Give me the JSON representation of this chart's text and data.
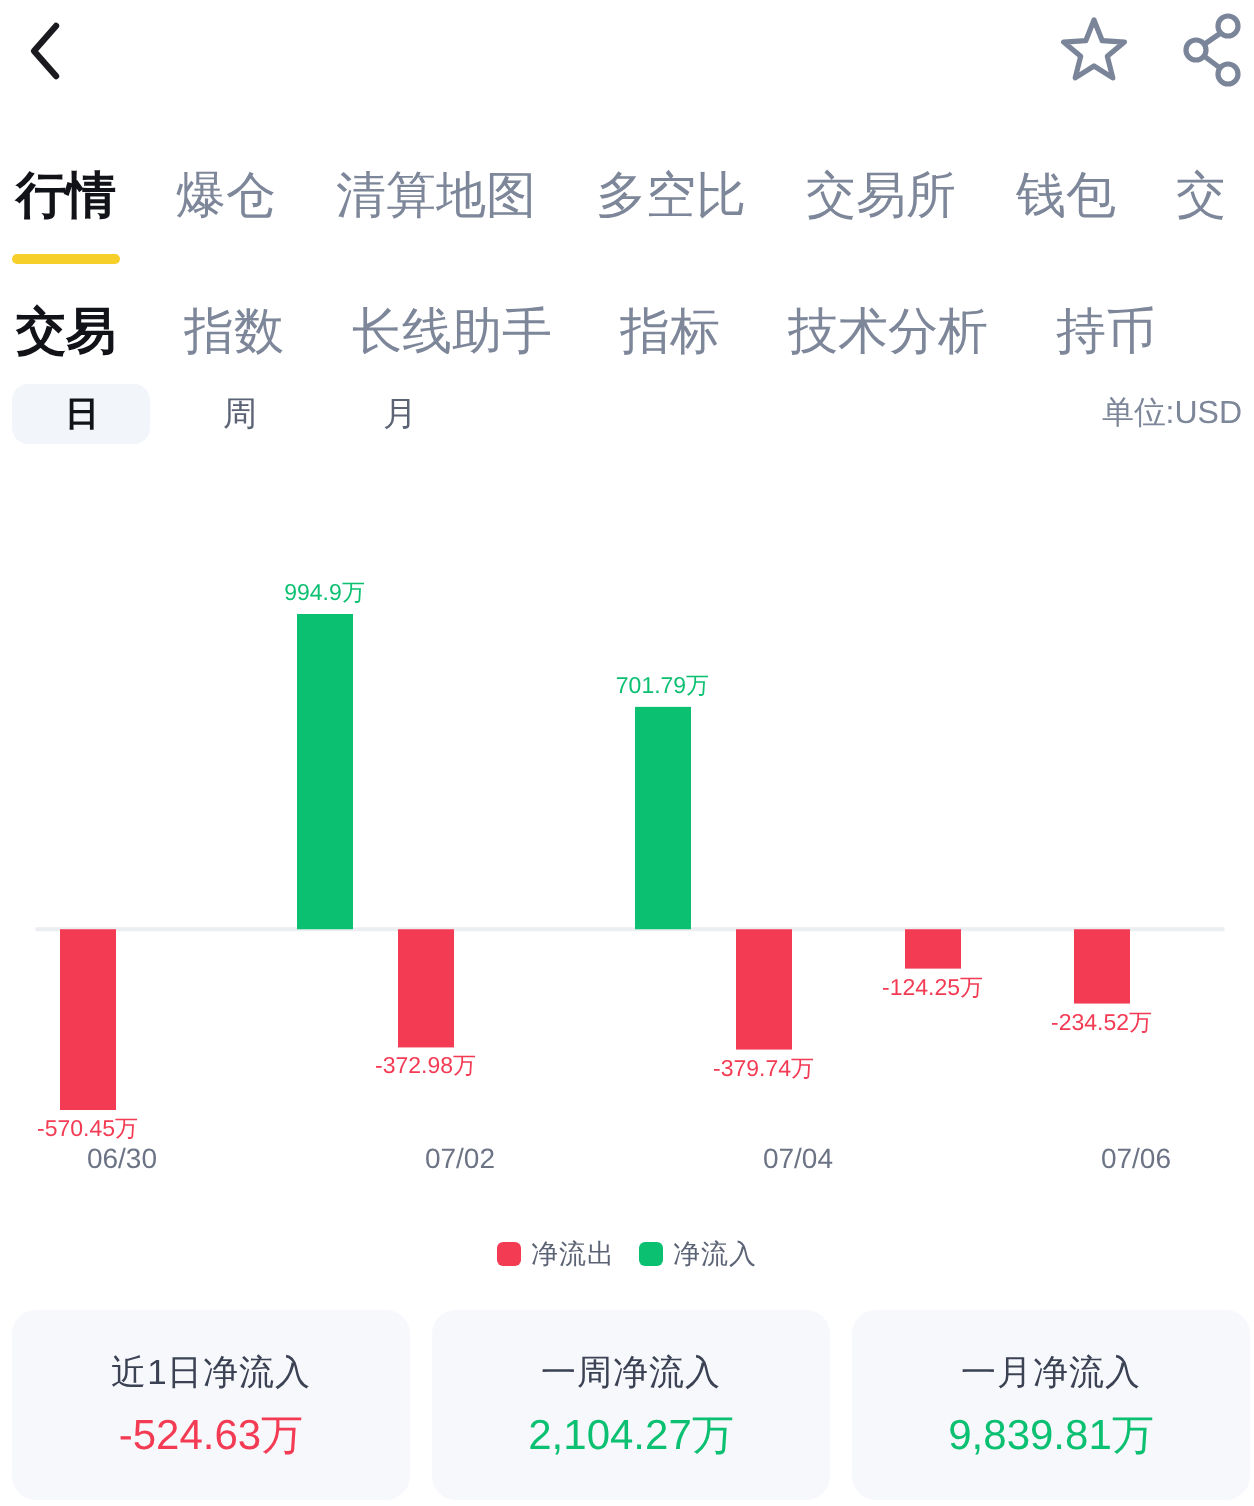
{
  "chart_data": {
    "type": "bar",
    "categories": [
      "06/30",
      null,
      "07/02",
      null,
      "07/04",
      null,
      "07/06"
    ],
    "series": [
      {
        "name": "净流出",
        "color": "#f33b54",
        "values": [
          -570.45,
          null,
          -372.98,
          null,
          -379.74,
          -124.25,
          -234.52
        ],
        "value_labels": [
          "-570.45万",
          null,
          "-372.98万",
          null,
          "-379.74万",
          "-124.25万",
          "-234.52万"
        ]
      },
      {
        "name": "净流入",
        "color": "#0cc072",
        "values": [
          null,
          994.9,
          null,
          701.79,
          null,
          null,
          null
        ],
        "value_labels": [
          null,
          "994.9万",
          null,
          "701.79万",
          null,
          null,
          null
        ]
      }
    ],
    "legend": "bottom",
    "annotations": [
      "行情",
      "爆仓",
      "清算地图",
      "多空比",
      "交易所",
      "钱包",
      "交",
      "交易",
      "指数",
      "长线助手",
      "指标",
      "技术分析",
      "持币",
      "日",
      "周",
      "月",
      "单位:USD",
      "近1日净流入",
      "-524.63万",
      "一周净流入",
      "2,104.27万",
      "一月净流入",
      "9,839.81万"
    ]
  }
}
